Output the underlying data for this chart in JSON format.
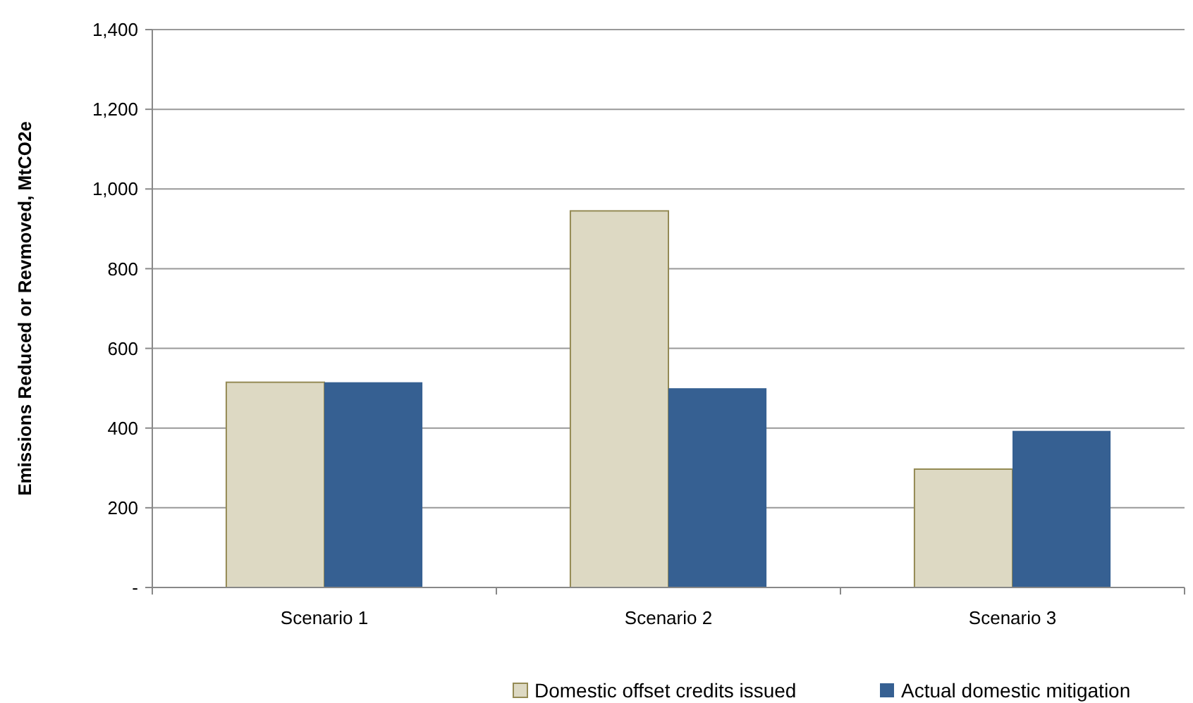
{
  "chart_data": {
    "type": "bar",
    "ylabel": "Emissions Reduced or Revmoved, MtCO2e",
    "categories": [
      "Scenario 1",
      "Scenario 2",
      "Scenario 3"
    ],
    "series": [
      {
        "name": "Domestic offset credits issued",
        "color": "#ddd9c3",
        "values": [
          515,
          945,
          297
        ]
      },
      {
        "name": "Actual domestic mitigation",
        "color": "#366092",
        "values": [
          515,
          500,
          393
        ]
      }
    ],
    "ylim": [
      0,
      1400
    ],
    "yticks": [
      {
        "value": 0,
        "label": "-"
      },
      {
        "value": 200,
        "label": "200"
      },
      {
        "value": 400,
        "label": "400"
      },
      {
        "value": 600,
        "label": "600"
      },
      {
        "value": 800,
        "label": "800"
      },
      {
        "value": 1000,
        "label": "1,000"
      },
      {
        "value": 1200,
        "label": "1,200"
      },
      {
        "value": 1400,
        "label": "1,400"
      }
    ],
    "grid": "y",
    "legend": "bottom"
  }
}
